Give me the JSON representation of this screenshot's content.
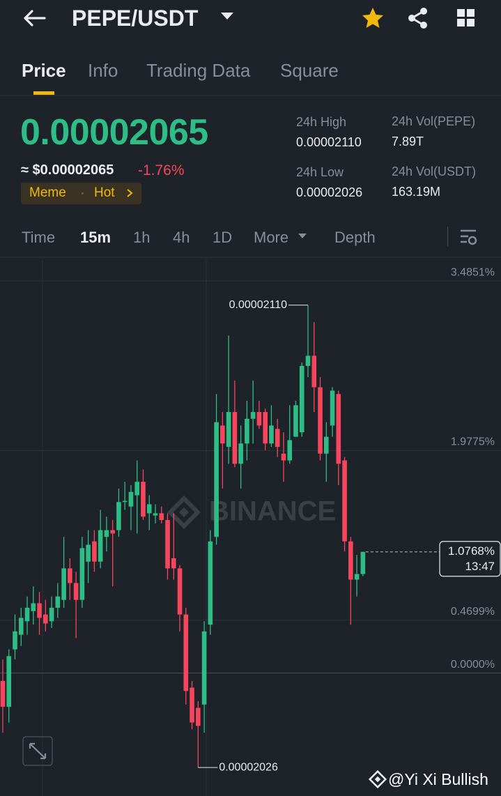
{
  "header": {
    "title": "PEPE/USDT"
  },
  "tabs": [
    "Price",
    "Info",
    "Trading Data",
    "Square"
  ],
  "price": {
    "last": "0.00002065",
    "usd": "≈ $0.00002065",
    "change": "-1.76%"
  },
  "tags": [
    "Meme",
    "Hot"
  ],
  "stats": [
    {
      "label": "24h High",
      "value": "0.00002110"
    },
    {
      "label": "24h Vol(PEPE)",
      "value": "7.89T"
    },
    {
      "label": "24h Low",
      "value": "0.00002026"
    },
    {
      "label": "24h Vol(USDT)",
      "value": "163.19M"
    }
  ],
  "intervals": [
    "Time",
    "15m",
    "1h",
    "4h",
    "1D",
    "More",
    "Depth"
  ],
  "chart_data": {
    "type": "candlestick",
    "ylim": [
      -1.05,
      3.69
    ],
    "yticks": [
      {
        "value": 3.4851,
        "label": "3.4851%"
      },
      {
        "value": 1.9775,
        "label": "1.9775%"
      },
      {
        "value": 0.4699,
        "label": "0.4699%"
      },
      {
        "value": 0,
        "label": "0.0000%"
      }
    ],
    "grid": true,
    "up_color": "#2ebd85",
    "down_color": "#f6465d",
    "open": [
      -0.07,
      -0.3,
      0.21,
      0.34,
      0.46,
      0.55,
      0.62,
      0.52,
      0.46,
      0.58,
      0.65,
      0.93,
      0.8,
      0.65,
      0.99,
      1.17,
      0.99,
      1.21,
      1.27,
      1.27,
      1.52,
      1.48,
      1.58,
      1.7,
      1.42,
      1.4,
      1.42,
      1.36,
      1.02,
      0.93,
      0.52,
      -0.13,
      -0.31,
      -0.28,
      0.43,
      1.21,
      2.2,
      2.01,
      2.32,
      1.86,
      2.04,
      2.26,
      2.32,
      2.32,
      2.04,
      2.17,
      1.95,
      1.89,
      2.1,
      2.14,
      2.73,
      2.82,
      2.54,
      1.95,
      2.2,
      2.48,
      1.89,
      1.17,
      0.83,
      0.88
    ],
    "high": [
      0.12,
      0.21,
      0.52,
      0.58,
      0.68,
      0.77,
      0.72,
      0.65,
      0.68,
      0.8,
      1.21,
      1.02,
      0.9,
      1.21,
      1.27,
      1.27,
      1.45,
      1.39,
      1.36,
      1.64,
      1.7,
      1.67,
      1.89,
      1.81,
      1.58,
      1.5,
      1.48,
      1.42,
      1.42,
      0.96,
      0.58,
      -0.07,
      -0.25,
      0.46,
      1.27,
      2.48,
      2.32,
      3.0,
      2.6,
      2.2,
      2.42,
      2.6,
      2.42,
      2.35,
      2.38,
      2.26,
      2.14,
      2.38,
      2.42,
      2.76,
      3.27,
      3.12,
      2.63,
      2.23,
      2.54,
      2.51,
      1.92,
      1.21,
      1.05,
      1.0768
    ],
    "low": [
      -0.53,
      -0.44,
      0.12,
      0.24,
      0.34,
      0.43,
      0.34,
      0.37,
      0.4,
      0.49,
      0.58,
      0.65,
      0.31,
      0.58,
      0.8,
      0.9,
      0.93,
      1.08,
      0.77,
      1.21,
      1.45,
      1.27,
      1.24,
      1.36,
      1.27,
      1.33,
      1.33,
      0.83,
      0.83,
      0.37,
      -0.28,
      -0.5,
      -0.84,
      -0.53,
      0.34,
      1.14,
      1.64,
      1.86,
      1.83,
      1.64,
      1.89,
      2.04,
      2.17,
      1.98,
      2.01,
      1.92,
      1.7,
      1.86,
      2.1,
      2.1,
      2.63,
      2.32,
      1.89,
      1.7,
      2.1,
      1.67,
      1.08,
      0.43,
      0.68,
      0.86
    ],
    "close": [
      -0.3,
      0.15,
      0.37,
      0.49,
      0.58,
      0.62,
      0.49,
      0.44,
      0.58,
      0.68,
      0.93,
      0.8,
      0.65,
      1.11,
      1.14,
      0.99,
      1.27,
      1.27,
      1.24,
      1.52,
      1.53,
      1.61,
      1.7,
      1.39,
      1.5,
      1.42,
      1.36,
      0.93,
      0.93,
      0.52,
      -0.16,
      -0.44,
      -0.47,
      0.37,
      1.17,
      2.23,
      2.04,
      2.32,
      1.86,
      2.04,
      2.26,
      2.32,
      2.2,
      2.04,
      2.2,
      2.01,
      1.89,
      2.07,
      2.38,
      2.73,
      2.82,
      2.54,
      1.95,
      2.1,
      2.51,
      1.86,
      1.17,
      0.83,
      0.88,
      1.0768
    ],
    "max_label": "0.00002110",
    "min_label": "0.00002026",
    "last": {
      "value": 1.0768,
      "label": "1.0768%"
    },
    "countdown": "13:47",
    "watermark": "BINANCE"
  },
  "credit": "@Yi Xi Bullish"
}
